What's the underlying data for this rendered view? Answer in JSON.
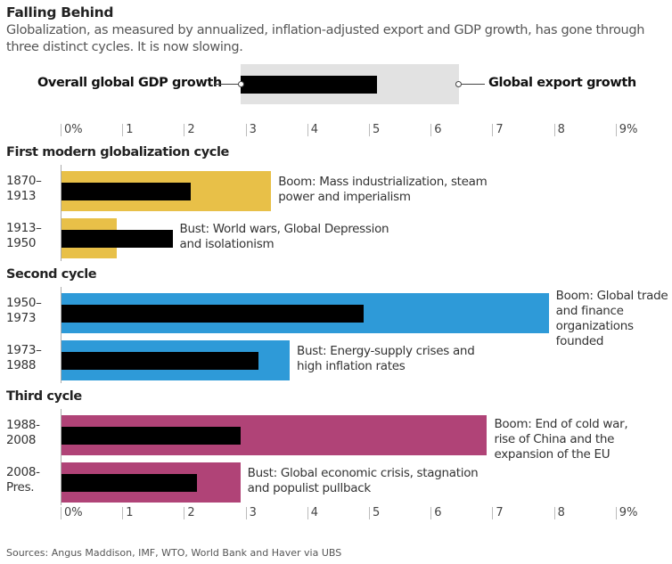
{
  "header": {
    "title": "Falling Behind",
    "subtitle": "Globalization, as measured by annualized, inflation-adjusted export and GDP growth, has gone through three distinct cycles. It is now slowing."
  },
  "legend": {
    "gdp_label": "Overall global GDP growth",
    "export_label": "Global export growth"
  },
  "colors": {
    "gdp": "#000000",
    "legend_export": "#e2e2e2",
    "cycle1": "#e8c048",
    "cycle2": "#2e9ad8",
    "cycle3": "#b04377"
  },
  "source": "Sources: Angus Maddison, IMF, WTO, World Bank and Haver via UBS",
  "chart_data": {
    "type": "bar",
    "orientation": "horizontal",
    "title": "Falling Behind",
    "xlabel": "",
    "ylabel": "",
    "xlim": [
      0,
      9
    ],
    "x_unit": "%",
    "tick_labels": [
      "0%",
      "1",
      "2",
      "3",
      "4",
      "5",
      "6",
      "7",
      "8",
      "9%"
    ],
    "series_names": [
      "Global export growth",
      "Overall global GDP growth"
    ],
    "groups": [
      {
        "name": "First modern globalization cycle",
        "color_key": "cycle1",
        "rows": [
          {
            "period": "1870–\n1913",
            "export": 3.4,
            "gdp": 2.1,
            "note": "Boom: Mass industrialization, steam\npower and imperialism"
          },
          {
            "period": "1913–\n1950",
            "export": 0.9,
            "gdp": 1.8,
            "note": "Bust: World wars, Global Depression\nand isolationism"
          }
        ]
      },
      {
        "name": "Second cycle",
        "color_key": "cycle2",
        "rows": [
          {
            "period": "1950–\n1973",
            "export": 7.9,
            "gdp": 4.9,
            "note": "Boom: Global trade\nand finance\norganizations\nfounded"
          },
          {
            "period": "1973–\n1988",
            "export": 3.7,
            "gdp": 3.2,
            "note": "Bust: Energy-supply crises and\nhigh inflation rates"
          }
        ]
      },
      {
        "name": "Third cycle",
        "color_key": "cycle3",
        "rows": [
          {
            "period": "1988-\n2008",
            "export": 6.9,
            "gdp": 2.9,
            "note": "Boom: End of cold war,\nrise of China and the\nexpansion of the EU"
          },
          {
            "period": "2008-\nPres.",
            "export": 2.9,
            "gdp": 2.2,
            "note": "Bust: Global economic crisis, stagnation\nand populist pullback"
          }
        ]
      }
    ]
  }
}
